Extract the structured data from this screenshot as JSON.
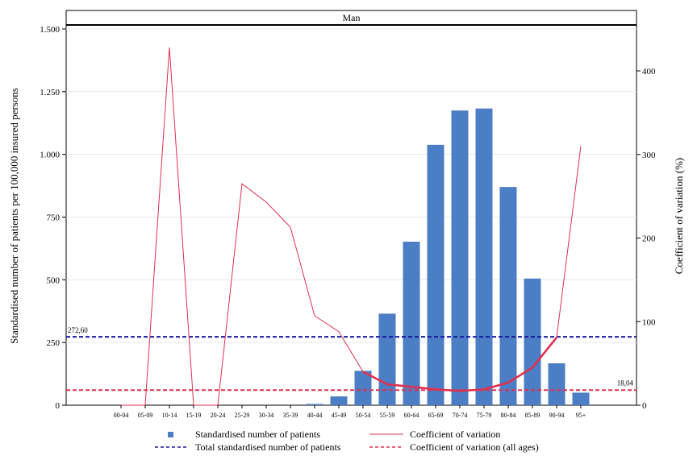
{
  "chart_data": {
    "type": "bar",
    "panel_title": "Man",
    "categories": [
      "00-04",
      "05-09",
      "10-14",
      "15-19",
      "20-24",
      "25-29",
      "30-34",
      "35-39",
      "40-44",
      "45-49",
      "50-54",
      "55-59",
      "60-64",
      "65-69",
      "70-74",
      "75-79",
      "80-84",
      "85-89",
      "90-94",
      "95+"
    ],
    "series": [
      {
        "name": "Standardised number of patients",
        "type": "bar",
        "axis": "left",
        "color": "#4b7ec4",
        "values": [
          0,
          0,
          0,
          0,
          0,
          0,
          0,
          0,
          5,
          35,
          137,
          365,
          652,
          1038,
          1175,
          1183,
          870,
          505,
          167,
          50
        ]
      },
      {
        "name": "Coefficient of variation",
        "type": "line",
        "axis": "right",
        "color": "#e0304e",
        "values": [
          0,
          0,
          428,
          0,
          0,
          265,
          243,
          213,
          107,
          88,
          40,
          25,
          22,
          19,
          17,
          19,
          27,
          45,
          81,
          310
        ],
        "emphasized_range": [
          10,
          18
        ]
      }
    ],
    "reference_lines": [
      {
        "name": "Total standardised number of patients",
        "axis": "left",
        "value": 272.6,
        "label": "272,60",
        "color": "#1a1aa0"
      },
      {
        "name": "Coefficient of variation (all ages)",
        "axis": "right",
        "value": 18.04,
        "label": "18,04",
        "color": "#e0304e"
      }
    ],
    "ylabel": "Standardised number of patients per 100,000 insured persons",
    "ylabel_right": "Coefficient of variation (%)",
    "ylim": [
      0,
      1500
    ],
    "ylim_right": [
      0,
      450
    ],
    "yticks": [
      0,
      250,
      500,
      750,
      1000,
      1250,
      1500
    ],
    "ytick_labels": [
      "0",
      "250",
      "500",
      "750",
      "1.000",
      "1.250",
      "1.500"
    ],
    "yticks_right": [
      0,
      100,
      200,
      300,
      400
    ],
    "ytick_labels_right": [
      "0",
      "100",
      "200",
      "300",
      "400"
    ],
    "grid": true,
    "legend_position": "bottom"
  }
}
